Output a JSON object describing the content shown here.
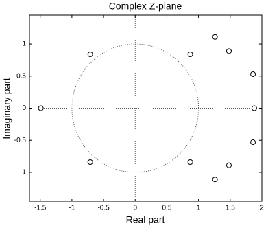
{
  "chart_data": {
    "type": "scatter",
    "title": "Complex Z-plane",
    "x_label": "Real part",
    "y_label": "Imaginary part",
    "x": [
      -1.49,
      -0.71,
      -0.71,
      0.87,
      0.87,
      1.26,
      1.26,
      1.48,
      1.48,
      1.86,
      1.86,
      1.88
    ],
    "y": [
      0,
      0.84,
      -0.84,
      0.84,
      -0.84,
      1.11,
      -1.11,
      0.89,
      -0.89,
      0.53,
      -0.53,
      0
    ],
    "color": "#000000",
    "marker": "open-circle",
    "xlim": [
      -1.67,
      2
    ],
    "xticks": [
      -1.5,
      -1,
      -0.5,
      0,
      0.5,
      1,
      1.5,
      2
    ],
    "ylim": [
      -1.45,
      1.45
    ],
    "yticks": [
      -1,
      -0.5,
      0,
      0.5,
      1
    ]
  }
}
